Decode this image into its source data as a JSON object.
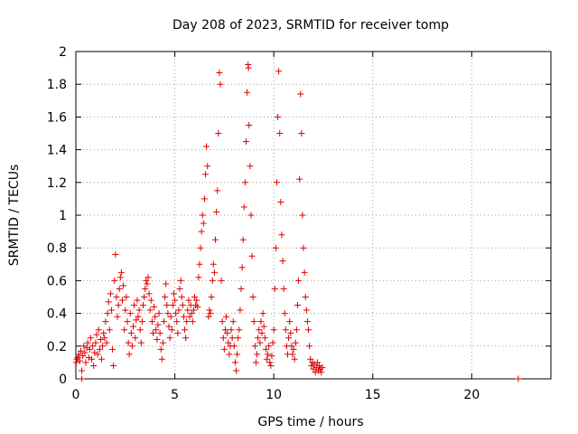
{
  "chart_data": {
    "type": "scatter",
    "title": "Day 208 of 2023, SRMTID for receiver tomp",
    "xlabel": "GPS time / hours",
    "ylabel": "SRMTID / TECUs",
    "xlim": [
      0,
      24
    ],
    "ylim": [
      0,
      2
    ],
    "x_ticks": [
      0,
      5,
      10,
      15,
      20
    ],
    "x_tick_labels": [
      "0",
      "5",
      "10",
      "15",
      "20"
    ],
    "y_ticks": [
      0,
      0.2,
      0.4,
      0.6,
      0.8,
      1,
      1.2,
      1.4,
      1.6,
      1.8,
      2
    ],
    "y_tick_labels": [
      "0",
      "0.2",
      "0.4",
      "0.6",
      "0.8",
      "1",
      "1.2",
      "1.4",
      "1.6",
      "1.8",
      "2"
    ],
    "grid": true,
    "marker": "+",
    "colors": {
      "points": "#e00000",
      "grid": "#a0a0a0",
      "axis": "#000000"
    },
    "series": [
      {
        "name": "SRMTID",
        "points": [
          [
            0.02,
            0.1
          ],
          [
            0.05,
            0.12
          ],
          [
            0.1,
            0.13
          ],
          [
            0.15,
            0.15
          ],
          [
            0.2,
            0.11
          ],
          [
            0.25,
            0.17
          ],
          [
            0.3,
            0.05
          ],
          [
            0.3,
            0.0
          ],
          [
            0.35,
            0.14
          ],
          [
            0.4,
            0.2
          ],
          [
            0.45,
            0.16
          ],
          [
            0.5,
            0.1
          ],
          [
            0.55,
            0.19
          ],
          [
            0.6,
            0.22
          ],
          [
            0.65,
            0.13
          ],
          [
            0.7,
            0.18
          ],
          [
            0.75,
            0.25
          ],
          [
            0.8,
            0.12
          ],
          [
            0.85,
            0.2
          ],
          [
            0.9,
            0.08
          ],
          [
            0.95,
            0.16
          ],
          [
            1.0,
            0.22
          ],
          [
            1.05,
            0.27
          ],
          [
            1.1,
            0.15
          ],
          [
            1.15,
            0.3
          ],
          [
            1.2,
            0.18
          ],
          [
            1.25,
            0.24
          ],
          [
            1.3,
            0.12
          ],
          [
            1.35,
            0.2
          ],
          [
            1.4,
            0.28
          ],
          [
            1.45,
            0.25
          ],
          [
            1.5,
            0.35
          ],
          [
            1.55,
            0.22
          ],
          [
            1.6,
            0.4
          ],
          [
            1.65,
            0.47
          ],
          [
            1.7,
            0.3
          ],
          [
            1.75,
            0.52
          ],
          [
            1.8,
            0.42
          ],
          [
            1.85,
            0.18
          ],
          [
            1.9,
            0.08
          ],
          [
            1.95,
            0.6
          ],
          [
            2.0,
            0.76
          ],
          [
            2.05,
            0.5
          ],
          [
            2.1,
            0.38
          ],
          [
            2.15,
            0.45
          ],
          [
            2.2,
            0.55
          ],
          [
            2.25,
            0.62
          ],
          [
            2.3,
            0.65
          ],
          [
            2.35,
            0.48
          ],
          [
            2.4,
            0.57
          ],
          [
            2.45,
            0.3
          ],
          [
            2.5,
            0.42
          ],
          [
            2.55,
            0.5
          ],
          [
            2.6,
            0.35
          ],
          [
            2.65,
            0.22
          ],
          [
            2.7,
            0.15
          ],
          [
            2.75,
            0.4
          ],
          [
            2.8,
            0.28
          ],
          [
            2.85,
            0.2
          ],
          [
            2.9,
            0.32
          ],
          [
            2.95,
            0.45
          ],
          [
            3.0,
            0.25
          ],
          [
            3.05,
            0.36
          ],
          [
            3.1,
            0.48
          ],
          [
            3.15,
            0.38
          ],
          [
            3.2,
            0.42
          ],
          [
            3.25,
            0.3
          ],
          [
            3.3,
            0.22
          ],
          [
            3.35,
            0.35
          ],
          [
            3.4,
            0.45
          ],
          [
            3.45,
            0.5
          ],
          [
            3.5,
            0.55
          ],
          [
            3.55,
            0.6
          ],
          [
            3.6,
            0.58
          ],
          [
            3.65,
            0.62
          ],
          [
            3.7,
            0.52
          ],
          [
            3.75,
            0.42
          ],
          [
            3.8,
            0.48
          ],
          [
            3.85,
            0.35
          ],
          [
            3.9,
            0.28
          ],
          [
            3.95,
            0.44
          ],
          [
            4.0,
            0.38
          ],
          [
            4.05,
            0.3
          ],
          [
            4.1,
            0.24
          ],
          [
            4.15,
            0.33
          ],
          [
            4.2,
            0.4
          ],
          [
            4.25,
            0.28
          ],
          [
            4.3,
            0.18
          ],
          [
            4.35,
            0.12
          ],
          [
            4.4,
            0.22
          ],
          [
            4.45,
            0.35
          ],
          [
            4.5,
            0.5
          ],
          [
            4.55,
            0.58
          ],
          [
            4.6,
            0.45
          ],
          [
            4.65,
            0.4
          ],
          [
            4.7,
            0.32
          ],
          [
            4.75,
            0.25
          ],
          [
            4.8,
            0.38
          ],
          [
            4.85,
            0.3
          ],
          [
            4.9,
            0.45
          ],
          [
            4.95,
            0.52
          ],
          [
            5.0,
            0.48
          ],
          [
            5.05,
            0.4
          ],
          [
            5.1,
            0.35
          ],
          [
            5.15,
            0.28
          ],
          [
            5.2,
            0.42
          ],
          [
            5.25,
            0.55
          ],
          [
            5.3,
            0.6
          ],
          [
            5.35,
            0.5
          ],
          [
            5.4,
            0.45
          ],
          [
            5.45,
            0.38
          ],
          [
            5.5,
            0.3
          ],
          [
            5.55,
            0.25
          ],
          [
            5.6,
            0.35
          ],
          [
            5.65,
            0.42
          ],
          [
            5.7,
            0.48
          ],
          [
            5.75,
            0.38
          ],
          [
            5.8,
            0.45
          ],
          [
            5.85,
            0.4
          ],
          [
            5.9,
            0.35
          ],
          [
            5.95,
            0.42
          ],
          [
            6.0,
            0.5
          ],
          [
            6.05,
            0.45
          ],
          [
            6.1,
            0.48
          ],
          [
            6.15,
            0.44
          ],
          [
            6.2,
            0.62
          ],
          [
            6.25,
            0.7
          ],
          [
            6.3,
            0.8
          ],
          [
            6.35,
            0.9
          ],
          [
            6.4,
            1.0
          ],
          [
            6.45,
            0.95
          ],
          [
            6.5,
            1.1
          ],
          [
            6.55,
            1.25
          ],
          [
            6.6,
            1.42
          ],
          [
            6.65,
            1.3
          ],
          [
            6.7,
            0.38
          ],
          [
            6.75,
            0.42
          ],
          [
            6.8,
            0.4
          ],
          [
            6.85,
            0.5
          ],
          [
            6.9,
            0.6
          ],
          [
            6.95,
            0.7
          ],
          [
            7.0,
            0.65
          ],
          [
            7.05,
            0.85
          ],
          [
            7.1,
            1.02
          ],
          [
            7.15,
            1.15
          ],
          [
            7.2,
            1.5
          ],
          [
            7.25,
            1.87
          ],
          [
            7.3,
            1.8
          ],
          [
            7.35,
            0.6
          ],
          [
            7.4,
            0.35
          ],
          [
            7.45,
            0.25
          ],
          [
            7.5,
            0.18
          ],
          [
            7.55,
            0.3
          ],
          [
            7.6,
            0.38
          ],
          [
            7.65,
            0.28
          ],
          [
            7.7,
            0.22
          ],
          [
            7.75,
            0.15
          ],
          [
            7.8,
            0.2
          ],
          [
            7.85,
            0.3
          ],
          [
            7.9,
            0.25
          ],
          [
            7.95,
            0.35
          ],
          [
            8.0,
            0.2
          ],
          [
            8.05,
            0.1
          ],
          [
            8.1,
            0.05
          ],
          [
            8.15,
            0.15
          ],
          [
            8.2,
            0.25
          ],
          [
            8.25,
            0.3
          ],
          [
            8.3,
            0.42
          ],
          [
            8.35,
            0.55
          ],
          [
            8.4,
            0.68
          ],
          [
            8.45,
            0.85
          ],
          [
            8.5,
            1.05
          ],
          [
            8.55,
            1.2
          ],
          [
            8.6,
            1.45
          ],
          [
            8.65,
            1.75
          ],
          [
            8.7,
            1.92
          ],
          [
            8.72,
            1.9
          ],
          [
            8.75,
            1.55
          ],
          [
            8.8,
            1.3
          ],
          [
            8.85,
            1.0
          ],
          [
            8.9,
            0.75
          ],
          [
            8.95,
            0.5
          ],
          [
            9.0,
            0.35
          ],
          [
            9.05,
            0.2
          ],
          [
            9.1,
            0.1
          ],
          [
            9.15,
            0.15
          ],
          [
            9.2,
            0.25
          ],
          [
            9.25,
            0.3
          ],
          [
            9.3,
            0.22
          ],
          [
            9.35,
            0.35
          ],
          [
            9.4,
            0.28
          ],
          [
            9.45,
            0.4
          ],
          [
            9.5,
            0.32
          ],
          [
            9.55,
            0.25
          ],
          [
            9.6,
            0.18
          ],
          [
            9.65,
            0.12
          ],
          [
            9.7,
            0.15
          ],
          [
            9.75,
            0.2
          ],
          [
            9.8,
            0.1
          ],
          [
            9.85,
            0.08
          ],
          [
            9.9,
            0.14
          ],
          [
            9.95,
            0.22
          ],
          [
            10.0,
            0.3
          ],
          [
            10.05,
            0.55
          ],
          [
            10.1,
            0.8
          ],
          [
            10.15,
            1.2
          ],
          [
            10.2,
            1.6
          ],
          [
            10.25,
            1.88
          ],
          [
            10.3,
            1.5
          ],
          [
            10.35,
            1.08
          ],
          [
            10.4,
            0.88
          ],
          [
            10.45,
            0.72
          ],
          [
            10.5,
            0.55
          ],
          [
            10.55,
            0.4
          ],
          [
            10.6,
            0.3
          ],
          [
            10.65,
            0.2
          ],
          [
            10.7,
            0.15
          ],
          [
            10.75,
            0.25
          ],
          [
            10.8,
            0.35
          ],
          [
            10.85,
            0.28
          ],
          [
            10.9,
            0.2
          ],
          [
            10.95,
            0.15
          ],
          [
            11.0,
            0.18
          ],
          [
            11.05,
            0.12
          ],
          [
            11.1,
            0.22
          ],
          [
            11.15,
            0.3
          ],
          [
            11.2,
            0.45
          ],
          [
            11.25,
            0.6
          ],
          [
            11.3,
            1.22
          ],
          [
            11.35,
            1.74
          ],
          [
            11.4,
            1.5
          ],
          [
            11.45,
            1.0
          ],
          [
            11.5,
            0.8
          ],
          [
            11.55,
            0.65
          ],
          [
            11.6,
            0.5
          ],
          [
            11.65,
            0.42
          ],
          [
            11.7,
            0.35
          ],
          [
            11.75,
            0.3
          ],
          [
            11.8,
            0.2
          ],
          [
            11.85,
            0.12
          ],
          [
            11.9,
            0.08
          ],
          [
            11.95,
            0.1
          ],
          [
            12.0,
            0.06
          ],
          [
            12.05,
            0.09
          ],
          [
            12.1,
            0.04
          ],
          [
            12.15,
            0.07
          ],
          [
            12.2,
            0.1
          ],
          [
            12.25,
            0.05
          ],
          [
            12.3,
            0.08
          ],
          [
            12.35,
            0.06
          ],
          [
            12.4,
            0.04
          ],
          [
            12.45,
            0.07
          ],
          [
            22.35,
            0.0
          ]
        ]
      }
    ]
  }
}
